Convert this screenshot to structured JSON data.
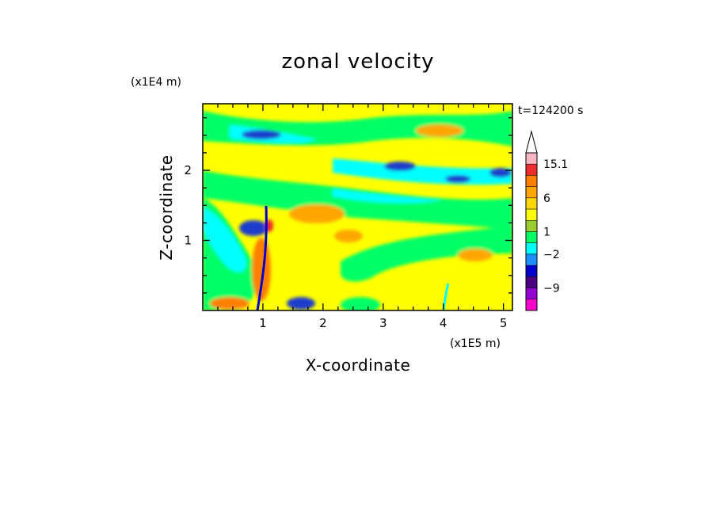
{
  "chart_data": {
    "type": "heatmap",
    "title": "zonal velocity",
    "xlabel": "X-coordinate",
    "ylabel": "Z-coordinate",
    "x_unit": "(x1E5 m)",
    "y_unit": "(x1E4 m)",
    "time_label": "t=124200 s",
    "xlim": [
      0,
      5.15
    ],
    "ylim": [
      0,
      2.95
    ],
    "x_ticks": [
      "1",
      "2",
      "3",
      "4",
      "5"
    ],
    "y_ticks": [
      "1",
      "2"
    ],
    "colorbar_labels": [
      "15.1",
      "6",
      "1",
      "−2",
      "−9"
    ],
    "colorbar_colors": [
      "#f7b6c2",
      "#ee2c2c",
      "#ff7f00",
      "#ffa500",
      "#ffd700",
      "#ffff00",
      "#9acd32",
      "#00ff66",
      "#00ffff",
      "#1e90ff",
      "#0000cd",
      "#4b0082",
      "#9400d3",
      "#ff00cc"
    ]
  }
}
